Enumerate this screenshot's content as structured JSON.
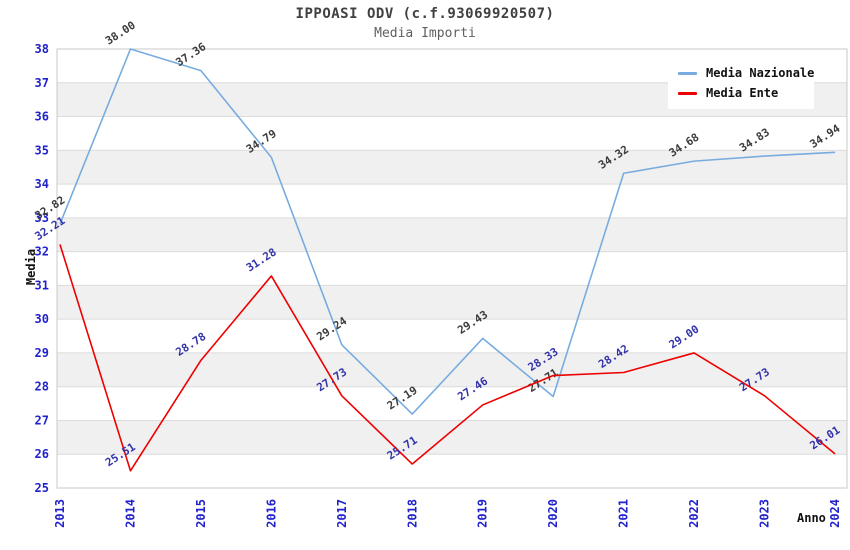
{
  "title": "IPPOASI ODV (c.f.93069920507)",
  "subtitle": "Media Importi",
  "chart_data": {
    "type": "line",
    "title": "IPPOASI ODV (c.f.93069920507)",
    "subtitle": "Media Importi",
    "xlabel": "Anno",
    "ylabel": "Media",
    "ylim": [
      25,
      38
    ],
    "yticks": [
      "25",
      "26",
      "27",
      "28",
      "29",
      "30",
      "31",
      "32",
      "33",
      "34",
      "35",
      "36",
      "37",
      "38"
    ],
    "categories": [
      "2013",
      "2014",
      "2015",
      "2016",
      "2017",
      "2018",
      "2019",
      "2020",
      "2021",
      "2022",
      "2023",
      "2024"
    ],
    "grid": "horizontal gridlines with alternating gray bands",
    "legend_position": "top-right",
    "series": [
      {
        "name": "Media Nazionale",
        "color": "#78ace0",
        "label_color": "#3c3c3c",
        "values": [
          32.82,
          38.0,
          37.36,
          34.79,
          29.24,
          27.19,
          29.43,
          27.71,
          34.32,
          34.68,
          34.83,
          34.94
        ],
        "labels": [
          "32.82",
          "38.00",
          "37.36",
          "34.79",
          "29.24",
          "27.19",
          "29.43",
          "27.71",
          "34.32",
          "34.68",
          "34.83",
          "34.94"
        ]
      },
      {
        "name": "Media Ente",
        "color": "#ee0000",
        "label_color": "#3333aa",
        "values": [
          32.21,
          25.51,
          28.78,
          31.28,
          27.73,
          25.71,
          27.46,
          28.33,
          28.42,
          29.0,
          27.73,
          26.01
        ],
        "labels": [
          "32.21",
          "25.51",
          "28.78",
          "31.28",
          "27.73",
          "25.71",
          "27.46",
          "28.33",
          "28.42",
          "29.00",
          "27.73",
          "26.01"
        ]
      }
    ],
    "colors": {
      "tick": "#2222cc",
      "band": "#f0f0f0",
      "gridline": "#dcdcdc",
      "border": "#c9c9c9",
      "title": "#404040",
      "subtitle": "#606060",
      "axis_label": "#111111"
    }
  }
}
